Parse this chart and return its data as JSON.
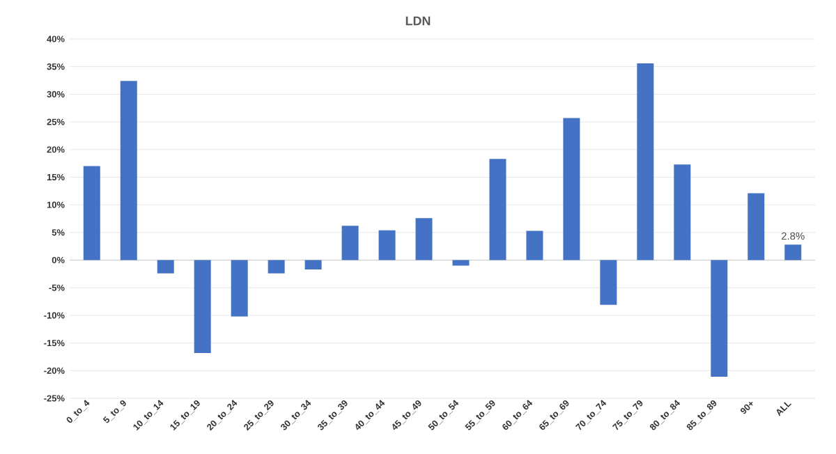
{
  "chart_data": {
    "type": "bar",
    "title": "LDN",
    "categories": [
      "0_to_4",
      "5_to_9",
      "10_to_14",
      "15_to_19",
      "20_to_24",
      "25_to_29",
      "30_to_34",
      "35_to_39",
      "40_to_44",
      "45_to_49",
      "50_to_54",
      "55_to_59",
      "60_to_64",
      "65_to_69",
      "70_to_74",
      "75_to_79",
      "80_to_84",
      "85_to_89",
      "90+",
      "ALL"
    ],
    "values": [
      17.0,
      32.4,
      -2.4,
      -16.8,
      -10.2,
      -2.4,
      -1.7,
      6.2,
      5.4,
      7.6,
      -1.0,
      18.3,
      5.3,
      25.7,
      -8.1,
      35.6,
      17.3,
      -21.1,
      12.1,
      2.8
    ],
    "value_labels": [
      null,
      null,
      null,
      null,
      null,
      null,
      null,
      null,
      null,
      null,
      null,
      null,
      null,
      null,
      null,
      null,
      null,
      null,
      null,
      "2.8%"
    ],
    "color": "#4472c4",
    "ylim": [
      -25,
      40
    ],
    "yticks": [
      {
        "value": -25,
        "label": "-25%"
      },
      {
        "value": -20,
        "label": "-20%"
      },
      {
        "value": -15,
        "label": "-15%"
      },
      {
        "value": -10,
        "label": "-10%"
      },
      {
        "value": -5,
        "label": "-5%"
      },
      {
        "value": 0,
        "label": "0%"
      },
      {
        "value": 5,
        "label": "5%"
      },
      {
        "value": 10,
        "label": "10%"
      },
      {
        "value": 15,
        "label": "15%"
      },
      {
        "value": 20,
        "label": "20%"
      },
      {
        "value": 25,
        "label": "25%"
      },
      {
        "value": 30,
        "label": "30%"
      },
      {
        "value": 35,
        "label": "35%"
      },
      {
        "value": 40,
        "label": "40%"
      }
    ],
    "grid": "y"
  }
}
